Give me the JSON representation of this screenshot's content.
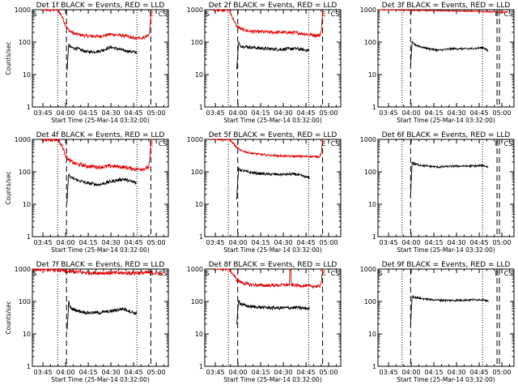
{
  "chart_data": [
    {
      "type": "line",
      "title": "Det 1f BLACK = Events, RED = LLD",
      "xlabel": "Start Time (25-Mar-14 03:32:00)",
      "ylabel": "Counts/sec",
      "yscale": "log",
      "ylim": [
        1,
        1000
      ],
      "xlim": [
        -10,
        35
      ],
      "x_ticks": [
        "03:45",
        "04:00",
        "04:15",
        "04:30",
        "04:45",
        "05:00"
      ],
      "y_ticks": [
        "1",
        "10",
        "100",
        "1000"
      ],
      "markers_top": [
        "S",
        "E",
        "CS"
      ],
      "vlines": [
        {
          "x": -1.6,
          "style": "dotted"
        },
        {
          "x": 1.3,
          "style": "dashed"
        },
        {
          "x": 24.6,
          "style": "dotted"
        },
        {
          "x": 29.2,
          "style": "dashed"
        }
      ],
      "series": [
        {
          "color": "#e00000",
          "x": [
            -7,
            -1.5,
            0,
            1,
            2,
            4,
            8,
            12,
            16,
            20,
            24,
            27,
            28.5,
            29,
            29.2
          ],
          "y": [
            1000,
            1000,
            560,
            330,
            230,
            180,
            155,
            150,
            175,
            160,
            130,
            140,
            165,
            300,
            1000
          ],
          "noise": 0.05
        },
        {
          "color": "#000000",
          "x": [
            1.5,
            2,
            2.4,
            3,
            5,
            8,
            12,
            16,
            20,
            24.5
          ],
          "y": [
            12,
            90,
            70,
            68,
            62,
            50,
            52,
            70,
            56,
            48
          ],
          "noise": 0.05
        }
      ]
    },
    {
      "type": "line",
      "title": "Det 2f BLACK = Events, RED = LLD",
      "xlabel": "Start Time (25-Mar-14 03:32:00)",
      "ylabel": "",
      "yscale": "log",
      "ylim": [
        1,
        1000
      ],
      "xlim": [
        -10,
        35
      ],
      "x_ticks": [
        "03:45",
        "04:00",
        "04:15",
        "04:30",
        "04:45",
        "05:00"
      ],
      "y_ticks": [
        "1",
        "10",
        "100",
        "1000"
      ],
      "markers_top": [
        "S",
        "E",
        "CS"
      ],
      "vlines": [
        {
          "x": -2.2,
          "style": "dotted"
        },
        {
          "x": 0.9,
          "style": "dashed"
        },
        {
          "x": 24.4,
          "style": "dotted"
        },
        {
          "x": 29.0,
          "style": "dashed"
        }
      ],
      "series": [
        {
          "color": "#e00000",
          "x": [
            -7,
            -2,
            -0.5,
            0.5,
            2,
            5,
            10,
            15,
            20,
            25,
            28,
            28.6,
            29
          ],
          "y": [
            1000,
            1000,
            500,
            320,
            250,
            215,
            205,
            200,
            195,
            170,
            160,
            220,
            1000
          ],
          "noise": 0.05
        },
        {
          "color": "#000000",
          "x": [
            0.6,
            1.2,
            1.6,
            2.5,
            5,
            10,
            15,
            20,
            24.6
          ],
          "y": [
            15,
            100,
            78,
            75,
            70,
            63,
            60,
            63,
            55
          ],
          "noise": 0.05
        }
      ]
    },
    {
      "type": "line",
      "title": "Det 3f BLACK = Events, RED = LLD",
      "xlabel": "Start Time (25-Mar-14 03:32:00)",
      "ylabel": "",
      "yscale": "log",
      "ylim": [
        1,
        1000
      ],
      "xlim": [
        -10,
        35
      ],
      "x_ticks": [
        "03:45",
        "04:00",
        "04:15",
        "04:30",
        "04:45",
        "05:00"
      ],
      "y_ticks": [
        "1",
        "10",
        "100",
        "1000"
      ],
      "markers_top": [
        "E",
        "CS"
      ],
      "vlines": [
        {
          "x": -2.0,
          "style": "dotted"
        },
        {
          "x": 0.8,
          "style": "dashed"
        },
        {
          "x": 24.6,
          "style": "dotted"
        },
        {
          "x": 29.4,
          "style": "dashed"
        },
        {
          "x": 30.2,
          "style": "dashed"
        }
      ],
      "series": [
        {
          "color": "#e00000",
          "x": [
            -10,
            5,
            15,
            25,
            30,
            33
          ],
          "y": [
            1000,
            950,
            920,
            880,
            850,
            840
          ],
          "noise": 0.015
        },
        {
          "color": "#000000",
          "x": [
            0.8,
            1.3,
            2,
            5,
            10,
            15,
            20,
            25,
            26.5
          ],
          "y": [
            20,
            98,
            85,
            68,
            56,
            63,
            62,
            68,
            52
          ],
          "noise": 0.03
        }
      ]
    },
    {
      "type": "line",
      "title": "Det 4f BLACK = Events, RED = LLD",
      "xlabel": "Start Time (25-Mar-14 03:32:00)",
      "ylabel": "Counts/sec",
      "yscale": "log",
      "ylim": [
        1,
        1000
      ],
      "xlim": [
        -10,
        35
      ],
      "x_ticks": [
        "03:45",
        "04:00",
        "04:15",
        "04:30",
        "04:45",
        "05:00"
      ],
      "y_ticks": [
        "1",
        "10",
        "100",
        "1000"
      ],
      "markers_top": [
        "E",
        "CS"
      ],
      "vlines": [
        {
          "x": -1.6,
          "style": "dotted"
        },
        {
          "x": 1.3,
          "style": "dashed"
        },
        {
          "x": 24.6,
          "style": "dotted"
        },
        {
          "x": 29.2,
          "style": "dashed"
        }
      ],
      "series": [
        {
          "color": "#e00000",
          "x": [
            -7,
            -1.5,
            0,
            1,
            2,
            4,
            8,
            12,
            16,
            20,
            24,
            27,
            28.5,
            29,
            29.2
          ],
          "y": [
            1000,
            1000,
            580,
            320,
            230,
            180,
            150,
            140,
            150,
            140,
            120,
            125,
            140,
            300,
            1000
          ],
          "noise": 0.06
        },
        {
          "color": "#000000",
          "x": [
            1.5,
            2,
            2.4,
            3,
            5,
            8,
            12,
            16,
            20,
            24.5
          ],
          "y": [
            12,
            90,
            70,
            65,
            55,
            45,
            40,
            50,
            60,
            45
          ],
          "noise": 0.05
        }
      ]
    },
    {
      "type": "line",
      "title": "Det 5f BLACK = Events, RED = LLD",
      "xlabel": "Start Time (25-Mar-14 03:32:00)",
      "ylabel": "",
      "yscale": "log",
      "ylim": [
        1,
        1000
      ],
      "xlim": [
        -10,
        35
      ],
      "x_ticks": [
        "03:45",
        "04:00",
        "04:15",
        "04:30",
        "04:45",
        "05:00"
      ],
      "y_ticks": [
        "1",
        "10",
        "100",
        "1000"
      ],
      "markers_top": [
        "E",
        "CS"
      ],
      "vlines": [
        {
          "x": -2.2,
          "style": "dotted"
        },
        {
          "x": 0.9,
          "style": "dashed"
        },
        {
          "x": 24.4,
          "style": "dotted"
        },
        {
          "x": 29.0,
          "style": "dashed"
        }
      ],
      "series": [
        {
          "color": "#e00000",
          "x": [
            -7,
            -2,
            -0.5,
            0.5,
            2,
            5,
            10,
            15,
            20,
            25,
            28,
            28.6,
            29
          ],
          "y": [
            1000,
            1000,
            750,
            560,
            450,
            380,
            330,
            310,
            300,
            300,
            290,
            400,
            1000
          ],
          "noise": 0.03
        },
        {
          "color": "#000000",
          "x": [
            0.6,
            1.2,
            1.6,
            2.5,
            5,
            10,
            15,
            20,
            24.6
          ],
          "y": [
            15,
            140,
            115,
            110,
            95,
            85,
            83,
            85,
            65
          ],
          "noise": 0.04
        }
      ]
    },
    {
      "type": "line",
      "title": "Det 6f BLACK = Events, RED = LLD",
      "xlabel": "Start Time (25-Mar-14 03:32:00)",
      "ylabel": "",
      "yscale": "log",
      "ylim": [
        1,
        1000
      ],
      "xlim": [
        -10,
        35
      ],
      "x_ticks": [
        "03:45",
        "04:00",
        "04:15",
        "04:30",
        "04:45",
        "05:00"
      ],
      "y_ticks": [
        "1",
        "10",
        "100",
        "1000"
      ],
      "markers_top": [
        "E",
        "CS"
      ],
      "vlines": [
        {
          "x": -2.0,
          "style": "dotted"
        },
        {
          "x": 0.8,
          "style": "dashed"
        },
        {
          "x": 24.6,
          "style": "dotted"
        },
        {
          "x": 29.4,
          "style": "dashed"
        },
        {
          "x": 30.2,
          "style": "dashed"
        }
      ],
      "series": [
        {
          "color": "#000000",
          "x": [
            0.8,
            1.3,
            2,
            5,
            10,
            15,
            20,
            25,
            26.5
          ],
          "y": [
            20,
            200,
            175,
            155,
            140,
            150,
            150,
            155,
            140
          ],
          "noise": 0.03
        }
      ]
    },
    {
      "type": "line",
      "title": "Det 7f BLACK = Events, RED = LLD",
      "xlabel": "Start Time (25-Mar-14 03:32:00)",
      "ylabel": "Counts/sec",
      "yscale": "log",
      "ylim": [
        1,
        1000
      ],
      "xlim": [
        -10,
        35
      ],
      "x_ticks": [
        "03:45",
        "04:00",
        "04:15",
        "04:30",
        "04:45",
        "05:00"
      ],
      "y_ticks": [
        "1",
        "10",
        "100",
        "1000"
      ],
      "markers_top": [
        "S",
        "E",
        "CS"
      ],
      "vlines": [
        {
          "x": -1.6,
          "style": "dotted"
        },
        {
          "x": 1.3,
          "style": "dashed"
        },
        {
          "x": 24.6,
          "style": "dotted"
        },
        {
          "x": 29.2,
          "style": "dashed"
        }
      ],
      "series": [
        {
          "color": "#e00000",
          "x": [
            -10,
            -2,
            1,
            5,
            10,
            15,
            20,
            25,
            29,
            33
          ],
          "y": [
            1000,
            950,
            850,
            800,
            760,
            760,
            750,
            760,
            770,
            720
          ],
          "noise": 0.06
        },
        {
          "color": "#000000",
          "x": [
            1.5,
            2,
            2.4,
            3,
            5,
            8,
            12,
            16,
            20,
            24.5
          ],
          "y": [
            12,
            95,
            70,
            60,
            52,
            45,
            45,
            50,
            60,
            42
          ],
          "noise": 0.05
        }
      ]
    },
    {
      "type": "line",
      "title": "Det 8f BLACK = Events, RED = LLD",
      "xlabel": "Start Time (25-Mar-14 03:32:00)",
      "ylabel": "",
      "yscale": "log",
      "ylim": [
        1,
        1000
      ],
      "xlim": [
        -10,
        35
      ],
      "x_ticks": [
        "03:45",
        "04:00",
        "04:15",
        "04:30",
        "04:45",
        "05:00"
      ],
      "y_ticks": [
        "1",
        "10",
        "100",
        "1000"
      ],
      "markers_top": [
        "S",
        "E",
        "CS"
      ],
      "vlines": [
        {
          "x": -2.2,
          "style": "dotted"
        },
        {
          "x": 0.9,
          "style": "dashed"
        },
        {
          "x": 24.4,
          "style": "dotted"
        },
        {
          "x": 29.0,
          "style": "dashed"
        }
      ],
      "series": [
        {
          "color": "#e00000",
          "x": [
            -7,
            -2,
            -0.5,
            0.5,
            2,
            5,
            10,
            15,
            18,
            18.1,
            18.5,
            18.6,
            20,
            25,
            28,
            28.6,
            29
          ],
          "y": [
            1000,
            1000,
            660,
            470,
            390,
            330,
            310,
            320,
            330,
            900,
            900,
            320,
            315,
            300,
            290,
            420,
            1000
          ],
          "noise": 0.05
        },
        {
          "color": "#000000",
          "x": [
            0.6,
            1.2,
            1.6,
            2.5,
            5,
            10,
            15,
            20,
            24.6
          ],
          "y": [
            18,
            120,
            90,
            78,
            70,
            65,
            63,
            65,
            60
          ],
          "noise": 0.05
        }
      ]
    },
    {
      "type": "line",
      "title": "Det 9f BLACK = Events, RED = LLD",
      "xlabel": "Start Time (25-Mar-14 03:32:00)",
      "ylabel": "",
      "yscale": "log",
      "ylim": [
        1,
        1000
      ],
      "xlim": [
        -10,
        35
      ],
      "x_ticks": [
        "03:45",
        "04:00",
        "04:15",
        "04:30",
        "04:45",
        "05:00"
      ],
      "y_ticks": [
        "1",
        "10",
        "100",
        "1000"
      ],
      "markers_top": [
        "S",
        "E",
        "CS"
      ],
      "vlines": [
        {
          "x": -2.0,
          "style": "dotted"
        },
        {
          "x": 0.8,
          "style": "dashed"
        },
        {
          "x": 24.6,
          "style": "dotted"
        },
        {
          "x": 29.4,
          "style": "dashed"
        },
        {
          "x": 30.2,
          "style": "dashed"
        }
      ],
      "series": [
        {
          "color": "#000000",
          "x": [
            0.8,
            1.3,
            2,
            5,
            10,
            15,
            20,
            25,
            26.5
          ],
          "y": [
            20,
            150,
            135,
            120,
            110,
            108,
            112,
            115,
            100
          ],
          "noise": 0.03
        }
      ]
    }
  ]
}
